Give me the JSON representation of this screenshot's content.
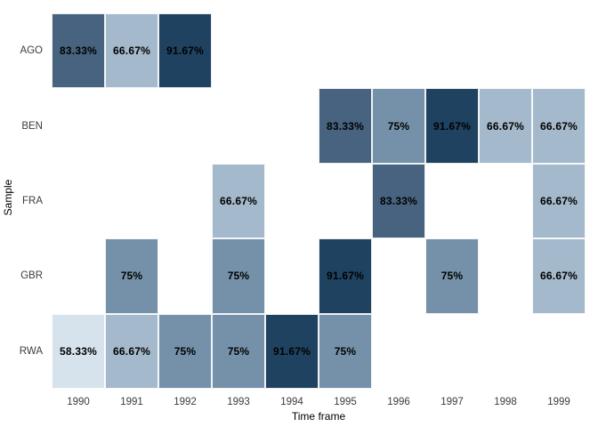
{
  "chart_data": {
    "type": "heatmap",
    "title": "",
    "xlabel": "Time frame",
    "ylabel": "Sample",
    "x_categories": [
      "1990",
      "1991",
      "1992",
      "1993",
      "1994",
      "1995",
      "1996",
      "1997",
      "1998",
      "1999"
    ],
    "y_categories": [
      "AGO",
      "BEN",
      "FRA",
      "GBR",
      "RWA"
    ],
    "cells": [
      {
        "row": "AGO",
        "col": "1990",
        "value": "83.33%"
      },
      {
        "row": "AGO",
        "col": "1991",
        "value": "66.67%"
      },
      {
        "row": "AGO",
        "col": "1992",
        "value": "91.67%"
      },
      {
        "row": "BEN",
        "col": "1995",
        "value": "83.33%"
      },
      {
        "row": "BEN",
        "col": "1996",
        "value": "75%"
      },
      {
        "row": "BEN",
        "col": "1997",
        "value": "91.67%"
      },
      {
        "row": "BEN",
        "col": "1998",
        "value": "66.67%"
      },
      {
        "row": "BEN",
        "col": "1999",
        "value": "66.67%"
      },
      {
        "row": "FRA",
        "col": "1993",
        "value": "66.67%"
      },
      {
        "row": "FRA",
        "col": "1996",
        "value": "83.33%"
      },
      {
        "row": "FRA",
        "col": "1999",
        "value": "66.67%"
      },
      {
        "row": "GBR",
        "col": "1991",
        "value": "75%"
      },
      {
        "row": "GBR",
        "col": "1993",
        "value": "75%"
      },
      {
        "row": "GBR",
        "col": "1995",
        "value": "91.67%"
      },
      {
        "row": "GBR",
        "col": "1997",
        "value": "75%"
      },
      {
        "row": "GBR",
        "col": "1999",
        "value": "66.67%"
      },
      {
        "row": "RWA",
        "col": "1990",
        "value": "58.33%"
      },
      {
        "row": "RWA",
        "col": "1991",
        "value": "66.67%"
      },
      {
        "row": "RWA",
        "col": "1992",
        "value": "75%"
      },
      {
        "row": "RWA",
        "col": "1993",
        "value": "75%"
      },
      {
        "row": "RWA",
        "col": "1994",
        "value": "91.67%"
      },
      {
        "row": "RWA",
        "col": "1995",
        "value": "75%"
      }
    ],
    "color_scale": {
      "58.33%": "#d6e3ed",
      "66.67%": "#a4b9cb",
      "75%": "#7491a9",
      "83.33%": "#47637f",
      "91.67%": "#1f4260"
    },
    "layout": {
      "legend": "none",
      "grid": "off",
      "background": "#ffffff"
    }
  }
}
